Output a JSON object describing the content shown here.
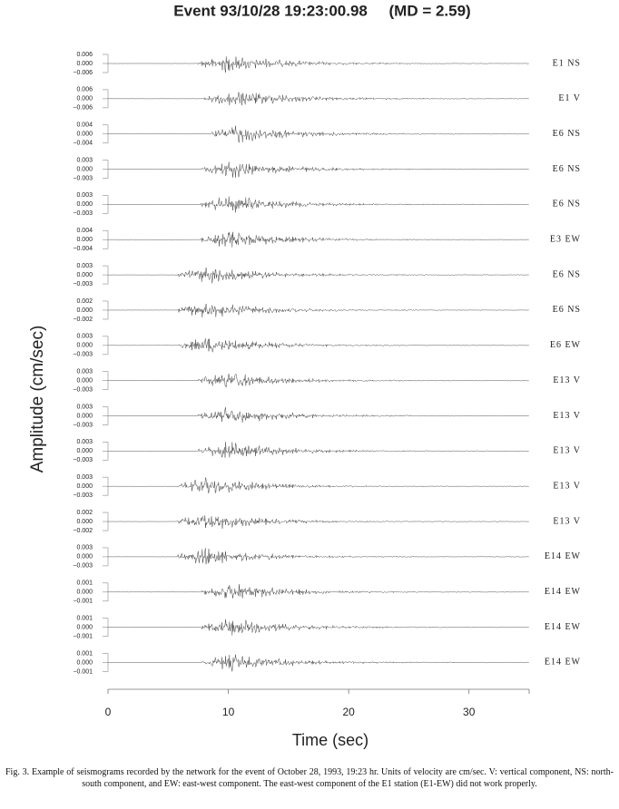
{
  "chart_data": {
    "type": "seismogram",
    "title": "Event 93/10/28 19:23:00.98     (MD = 2.59)",
    "xlabel": "Time (sec)",
    "ylabel": "Amplitude (cm/sec)",
    "xlim": [
      0,
      35
    ],
    "xticks": [
      0,
      10,
      20,
      30
    ],
    "traces": [
      {
        "label": "E1 NS",
        "onset": 7.5,
        "yticks": [
          {
            "value": 0.006,
            "label": "0.006"
          },
          {
            "value": 0,
            "label": "0.000"
          },
          {
            "value": -0.006,
            "label": "−0.006"
          }
        ]
      },
      {
        "label": "E1 V",
        "onset": 8,
        "yticks": [
          {
            "value": 0.006,
            "label": "0.006"
          },
          {
            "value": 0,
            "label": "0.000"
          },
          {
            "value": -0.006,
            "label": "−0.006"
          }
        ]
      },
      {
        "label": "E6 NS",
        "onset": 8.5,
        "yticks": [
          {
            "value": 0.004,
            "label": "0.004"
          },
          {
            "value": 0,
            "label": "0.000"
          },
          {
            "value": -0.004,
            "label": "−0.004"
          }
        ]
      },
      {
        "label": "E6 NS",
        "onset": 7.8,
        "yticks": [
          {
            "value": 0.003,
            "label": "0.003"
          },
          {
            "value": 0,
            "label": "0.000"
          },
          {
            "value": -0.003,
            "label": "−0.003"
          }
        ]
      },
      {
        "label": "E6 NS",
        "onset": 7.7,
        "yticks": [
          {
            "value": 0.003,
            "label": "0.003"
          },
          {
            "value": 0,
            "label": "0.000"
          },
          {
            "value": -0.003,
            "label": "−0.003"
          }
        ]
      },
      {
        "label": "E3 EW",
        "onset": 7.7,
        "yticks": [
          {
            "value": 0.004,
            "label": "0.004"
          },
          {
            "value": 0,
            "label": "0.000"
          },
          {
            "value": -0.004,
            "label": "−0.004"
          }
        ]
      },
      {
        "label": "E6 NS",
        "onset": 5.8,
        "yticks": [
          {
            "value": 0.003,
            "label": "0.003"
          },
          {
            "value": 0,
            "label": "0.000"
          },
          {
            "value": -0.003,
            "label": "−0.003"
          }
        ]
      },
      {
        "label": "E6 NS",
        "onset": 5.8,
        "yticks": [
          {
            "value": 0.002,
            "label": "0.002"
          },
          {
            "value": 0,
            "label": "0.000"
          },
          {
            "value": -0.002,
            "label": "−0.002"
          }
        ]
      },
      {
        "label": "E6 EW",
        "onset": 5.8,
        "yticks": [
          {
            "value": 0.003,
            "label": "0.003"
          },
          {
            "value": 0,
            "label": "0.000"
          },
          {
            "value": -0.003,
            "label": "−0.003"
          }
        ]
      },
      {
        "label": "E13 V",
        "onset": 7.5,
        "yticks": [
          {
            "value": 0.003,
            "label": "0.003"
          },
          {
            "value": 0,
            "label": "0.000"
          },
          {
            "value": -0.003,
            "label": "−0.003"
          }
        ]
      },
      {
        "label": "E13 V",
        "onset": 7.5,
        "yticks": [
          {
            "value": 0.003,
            "label": "0.003"
          },
          {
            "value": 0,
            "label": "0.000"
          },
          {
            "value": -0.003,
            "label": "−0.003"
          }
        ]
      },
      {
        "label": "E13 V",
        "onset": 7.5,
        "yticks": [
          {
            "value": 0.003,
            "label": "0.003"
          },
          {
            "value": 0,
            "label": "0.000"
          },
          {
            "value": -0.003,
            "label": "−0.003"
          }
        ]
      },
      {
        "label": "E13 V",
        "onset": 5.7,
        "yticks": [
          {
            "value": 0.003,
            "label": "0.003"
          },
          {
            "value": 0,
            "label": "0.000"
          },
          {
            "value": -0.003,
            "label": "−0.003"
          }
        ]
      },
      {
        "label": "E13 V",
        "onset": 5.7,
        "yticks": [
          {
            "value": 0.002,
            "label": "0.002"
          },
          {
            "value": 0,
            "label": "0.000"
          },
          {
            "value": -0.002,
            "label": "−0.002"
          }
        ]
      },
      {
        "label": "E14 EW",
        "onset": 5.7,
        "yticks": [
          {
            "value": 0.003,
            "label": "0.003"
          },
          {
            "value": 0,
            "label": "0.000"
          },
          {
            "value": -0.003,
            "label": "−0.003"
          }
        ]
      },
      {
        "label": "E14 EW",
        "onset": 7.8,
        "yticks": [
          {
            "value": 0.001,
            "label": "0.001"
          },
          {
            "value": 0,
            "label": "0.000"
          },
          {
            "value": -0.001,
            "label": "−0.001"
          }
        ]
      },
      {
        "label": "E14 EW",
        "onset": 7.8,
        "yticks": [
          {
            "value": 0.001,
            "label": "0.001"
          },
          {
            "value": 0,
            "label": "0.000"
          },
          {
            "value": -0.001,
            "label": "−0.001"
          }
        ]
      },
      {
        "label": "E14 EW",
        "onset": 7.8,
        "yticks": [
          {
            "value": 0.001,
            "label": "0.001"
          },
          {
            "value": 0,
            "label": "0.000"
          },
          {
            "value": -0.001,
            "label": "−0.001"
          }
        ]
      }
    ]
  },
  "caption": "Fig. 3. Example of seismograms recorded by the network for the event of October 28, 1993, 19:23 hr. Units of velocity are cm/sec. V: vertical component, NS: north-south component, and EW: east-west component. The east-west component of the E1 station (E1-EW) did not work properly."
}
